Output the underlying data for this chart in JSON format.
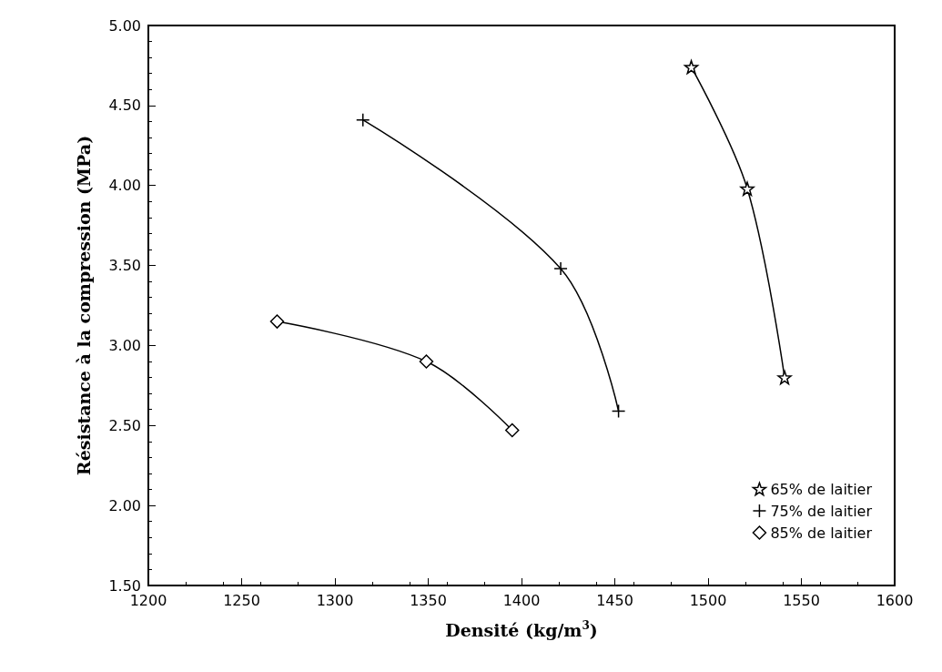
{
  "chart_data": {
    "type": "line",
    "xlabel": "Densité (kg/m$^{3}$)",
    "ylabel": "Résistance à la compression (MPa)",
    "xlim": [
      1200,
      1600
    ],
    "xticks": [
      1200,
      1250,
      1300,
      1350,
      1400,
      1450,
      1500,
      1550,
      1600
    ],
    "ylim": [
      1.5,
      5
    ],
    "yticks": [
      {
        "value": 1.5,
        "label": "1.50"
      },
      {
        "value": 2,
        "label": "2.00"
      },
      {
        "value": 2.5,
        "label": "2.50"
      },
      {
        "value": 3,
        "label": "3.00"
      },
      {
        "value": 3.5,
        "label": "3.50"
      },
      {
        "value": 4,
        "label": "4.00"
      },
      {
        "value": 4.5,
        "label": "4.50"
      },
      {
        "value": 5,
        "label": "5.00"
      }
    ],
    "grid": false,
    "legend": "bottom right",
    "line_style": "solid",
    "series": [
      {
        "name": "65% de laitier",
        "color": "#000000",
        "marker": "star",
        "x": [
          1491,
          1521,
          1541
        ],
        "values": [
          4.74,
          3.98,
          2.8
        ]
      },
      {
        "name": "75% de laitier",
        "color": "#000000",
        "marker": "cross",
        "x": [
          1315,
          1421,
          1452
        ],
        "values": [
          4.41,
          3.48,
          2.59
        ]
      },
      {
        "name": "85% de laitier",
        "color": "#000000",
        "marker": "diamond",
        "x": [
          1269,
          1349,
          1395
        ],
        "values": [
          3.15,
          2.9,
          2.47
        ]
      }
    ]
  }
}
